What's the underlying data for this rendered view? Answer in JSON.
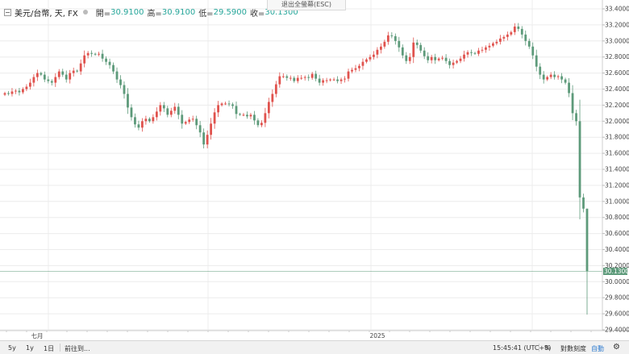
{
  "header": {
    "symbol": "美元/台幣, 天, FX",
    "open_label": "開=",
    "open_value": "30.9100",
    "high_label": "高=",
    "high_value": "30.9100",
    "low_label": "低=",
    "low_value": "29.5900",
    "close_label": "收=",
    "close_value": "30.1300"
  },
  "esc_tooltip": "退出全螢幕(ESC)",
  "last_price": "30.1300",
  "toolbar": {
    "range_5y": "5y",
    "range_1y": "1y",
    "range_1d": "1日",
    "goto": "前往到...",
    "time": "15:45:41 (UTC+8)",
    "percent": "%",
    "log": "對數刻度",
    "auto": "自動"
  },
  "colors": {
    "up": "#e0524d",
    "down": "#5d9a7a",
    "grid": "#ececec"
  },
  "chart_data": {
    "type": "candlestick",
    "title": "美元/台幣, 天, FX",
    "ylim": [
      29.4,
      33.4
    ],
    "y_ticks": [
      "33.4000",
      "33.2000",
      "33.0000",
      "32.8000",
      "32.6000",
      "32.4000",
      "32.2000",
      "32.0000",
      "31.8000",
      "31.6000",
      "31.4000",
      "31.2000",
      "31.0000",
      "30.8000",
      "30.6000",
      "30.4000",
      "30.2000",
      "30.0000",
      "29.8000",
      "29.6000",
      "29.4000"
    ],
    "x_labels": [
      "七月",
      "2025"
    ],
    "last_candle": {
      "open": 30.91,
      "high": 30.91,
      "low": 29.59,
      "close": 30.13
    },
    "close_series": [
      32.35,
      32.34,
      32.37,
      32.38,
      32.36,
      32.4,
      32.43,
      32.48,
      32.55,
      32.6,
      32.58,
      32.52,
      32.5,
      32.48,
      32.55,
      32.62,
      32.58,
      32.52,
      32.6,
      32.63,
      32.62,
      32.72,
      32.82,
      32.85,
      32.84,
      32.83,
      32.84,
      32.78,
      32.74,
      32.7,
      32.62,
      32.52,
      32.45,
      32.34,
      32.17,
      32.05,
      31.96,
      31.92,
      32.0,
      32.03,
      32.0,
      32.05,
      32.12,
      32.2,
      32.16,
      32.08,
      32.13,
      32.18,
      32.08,
      31.97,
      31.99,
      32.02,
      32.03,
      31.95,
      31.86,
      31.71,
      31.83,
      31.97,
      32.11,
      32.2,
      32.22,
      32.22,
      32.21,
      32.19,
      32.09,
      32.08,
      32.08,
      32.06,
      32.08,
      32.01,
      31.95,
      31.98,
      32.1,
      32.24,
      32.34,
      32.46,
      32.56,
      32.56,
      32.54,
      32.54,
      32.5,
      32.54,
      32.54,
      32.55,
      32.54,
      32.59,
      32.53,
      32.48,
      32.51,
      32.51,
      32.52,
      32.52,
      32.5,
      32.52,
      32.53,
      32.62,
      32.64,
      32.66,
      32.69,
      32.74,
      32.77,
      32.8,
      32.83,
      32.89,
      32.93,
      32.99,
      33.07,
      33.06,
      33.0,
      32.92,
      32.82,
      32.75,
      32.8,
      32.98,
      32.95,
      32.88,
      32.81,
      32.76,
      32.8,
      32.76,
      32.78,
      32.79,
      32.75,
      32.7,
      32.73,
      32.75,
      32.78,
      32.83,
      32.86,
      32.85,
      32.84,
      32.88,
      32.89,
      32.92,
      32.94,
      32.97,
      32.99,
      33.03,
      33.05,
      33.08,
      33.11,
      33.18,
      33.15,
      33.08,
      33.0,
      32.93,
      32.82,
      32.68,
      32.58,
      32.52,
      32.55,
      32.58,
      32.55,
      32.56,
      32.52,
      32.48,
      32.35,
      32.1,
      32.0,
      31.05,
      30.91,
      30.13
    ]
  }
}
